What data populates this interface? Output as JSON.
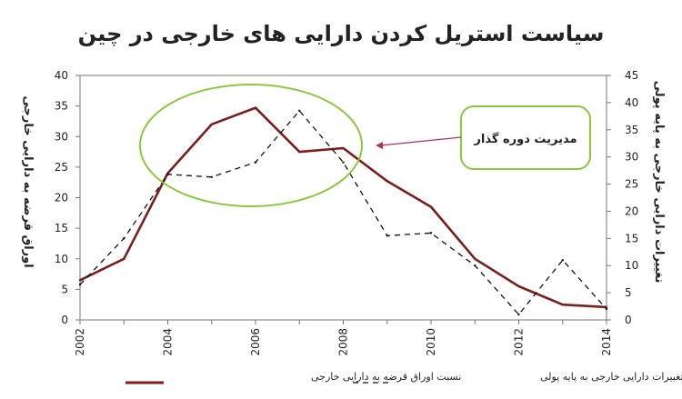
{
  "chart_data": {
    "type": "line",
    "title": "سیاست استریل کردن دارایی های خارجی در چین",
    "ylabel_left": "اوراق قرضه به دارایی خارجی",
    "ylabel_right": "تغییرات دارایی خارجی به پایه پولی",
    "xlim": [
      2002,
      2014
    ],
    "ylim_left": [
      0,
      40
    ],
    "ylim_right": [
      0,
      45
    ],
    "x_ticks": [
      "2002",
      "2004",
      "2006",
      "2008",
      "2010",
      "2012",
      "2014"
    ],
    "y_ticks_left": [
      "0",
      "5",
      "10",
      "15",
      "20",
      "25",
      "30",
      "35",
      "40"
    ],
    "y_ticks_right": [
      "0",
      "5",
      "10",
      "15",
      "20",
      "25",
      "30",
      "35",
      "40",
      "45"
    ],
    "grid": false,
    "legend_position": "bottom",
    "annotation": {
      "text": "مدیریت دوره گذار"
    },
    "colors": {
      "solid": "#7a1e1e",
      "dashed": "#111111",
      "ellipse": "#8dc63f",
      "arrow": "#b03060"
    },
    "series": [
      {
        "name": "نسبت اوراق قرضه به دارایی خارجی",
        "axis": "left",
        "style": "solid",
        "x": [
          2002,
          2003,
          2004,
          2005,
          2006,
          2007,
          2008,
          2009,
          2010,
          2011,
          2012,
          2013,
          2014
        ],
        "values": [
          6.5,
          10,
          24,
          32,
          34.7,
          27.5,
          28.1,
          22.7,
          18.5,
          10,
          5.5,
          2.5,
          2.1
        ]
      },
      {
        "name": "تغییرات دارایی خارجی به پایه پولی",
        "axis": "right",
        "style": "dashed",
        "x": [
          2002,
          2003,
          2004,
          2005,
          2006,
          2007,
          2008,
          2009,
          2010,
          2011,
          2012,
          2013,
          2014
        ],
        "values": [
          6.5,
          15,
          26.8,
          26.3,
          29,
          38.5,
          29,
          15.5,
          16,
          10,
          1,
          11,
          2
        ]
      }
    ]
  }
}
